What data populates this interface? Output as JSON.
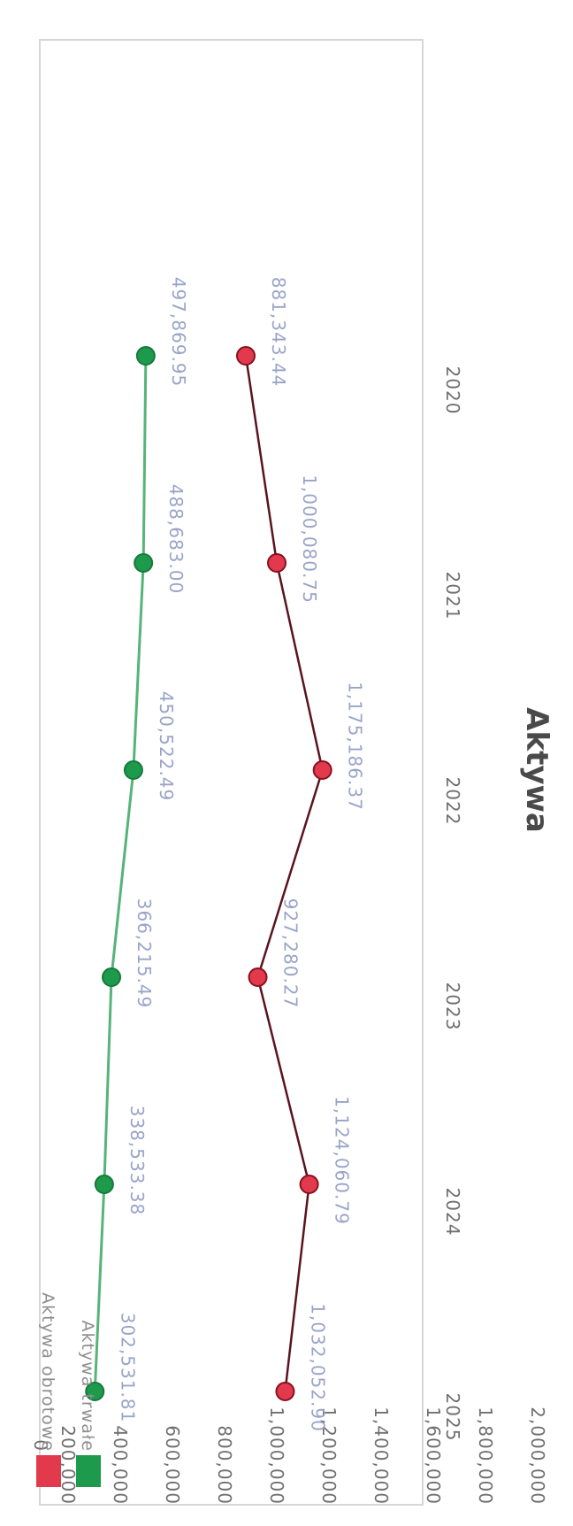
{
  "chart_data": {
    "type": "line",
    "title": "Aktywa",
    "categories": [
      "2020",
      "2021",
      "2022",
      "2023",
      "2024",
      "2025"
    ],
    "ylim": [
      0,
      2000000
    ],
    "yticks": [
      "0",
      "200,000",
      "400,000",
      "600,000",
      "800,000",
      "1,000,000",
      "1,200,000",
      "1,400,000",
      "1,600,000",
      "1,800,000",
      "2,000,000"
    ],
    "grid": false,
    "legend_placement": "bottom-left",
    "series": [
      {
        "name": "Aktywa trwałe",
        "color": "#1e9a4c",
        "values": [
          497869.95,
          488683.0,
          450522.49,
          366215.49,
          338533.38,
          302531.81
        ],
        "labels": [
          "497,869.95",
          "488,683.00",
          "450,522.49",
          "366,215.49",
          "338,533.38",
          "302,531.81"
        ]
      },
      {
        "name": "Aktywa obrotowe",
        "color": "#e23a4c",
        "values": [
          881343.44,
          1000080.75,
          1175186.37,
          927280.27,
          1124060.79,
          1032052.9
        ],
        "labels": [
          "881,343.44",
          "1,000,080.75",
          "1,175,186.37",
          "927,280.27",
          "1,124,060.79",
          "1,032,052.90"
        ]
      }
    ]
  }
}
